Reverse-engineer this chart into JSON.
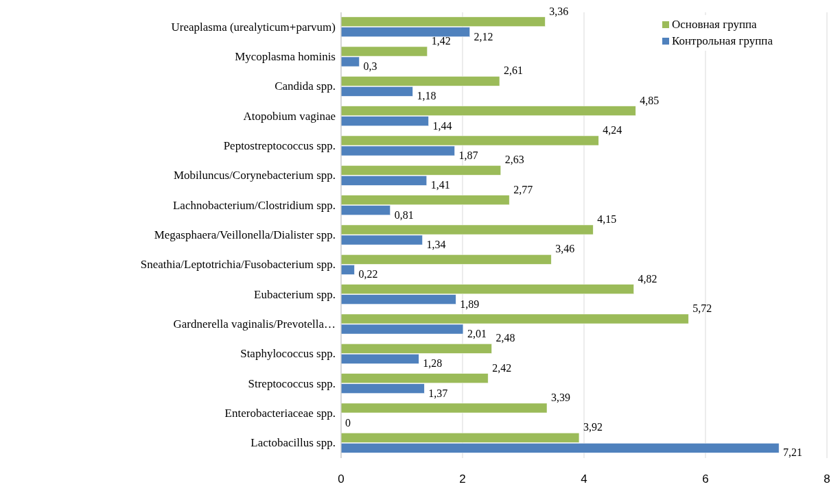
{
  "chart_data": {
    "type": "bar",
    "orientation": "horizontal",
    "categories": [
      "Ureaplasma (urealyticum+parvum)",
      "Mycoplasma hominis",
      "Candida spp.",
      "Atopobium vaginae",
      "Peptostreptococcus spp.",
      "Mobiluncus/Corynebacterium spp.",
      "Lachnobacterium/Clostridium spp.",
      "Megasphaera/Veillonella/Dialister spp.",
      "Sneathia/Leptotrichia/Fusobacterium spp.",
      "Eubacterium spp.",
      "Gardnerella vaginalis/Prevotella…",
      "Staphylococcus spp.",
      "Streptococcus spp.",
      "Enterobacteriaceae spp.",
      "Lactobacillus spp."
    ],
    "series": [
      {
        "name": "Основная группа",
        "color": "#9bbb59",
        "values": [
          3.36,
          1.42,
          2.61,
          4.85,
          4.24,
          2.63,
          2.77,
          4.15,
          3.46,
          4.82,
          5.72,
          2.48,
          2.42,
          3.39,
          3.92
        ],
        "value_labels": [
          "3,36",
          "1,42",
          "2,61",
          "4,85",
          "4,24",
          "2,63",
          "2,77",
          "4,15",
          "3,46",
          "4,82",
          "5,72",
          "2,48",
          "2,42",
          "3,39",
          "3,92"
        ]
      },
      {
        "name": "Контрольная группа",
        "color": "#4f81bd",
        "values": [
          2.12,
          0.3,
          1.18,
          1.44,
          1.87,
          1.41,
          0.81,
          1.34,
          0.22,
          1.89,
          2.01,
          1.28,
          1.37,
          0,
          7.21
        ],
        "value_labels": [
          "2,12",
          "0,3",
          "1,18",
          "1,44",
          "1,87",
          "1,41",
          "0,81",
          "1,34",
          "0,22",
          "1,89",
          "2,01",
          "1,28",
          "1,37",
          "0",
          "7,21"
        ]
      }
    ],
    "xlim": [
      0,
      8
    ],
    "xticks": [
      0,
      2,
      4,
      6,
      8
    ],
    "grid": "x",
    "legend": "top right"
  }
}
